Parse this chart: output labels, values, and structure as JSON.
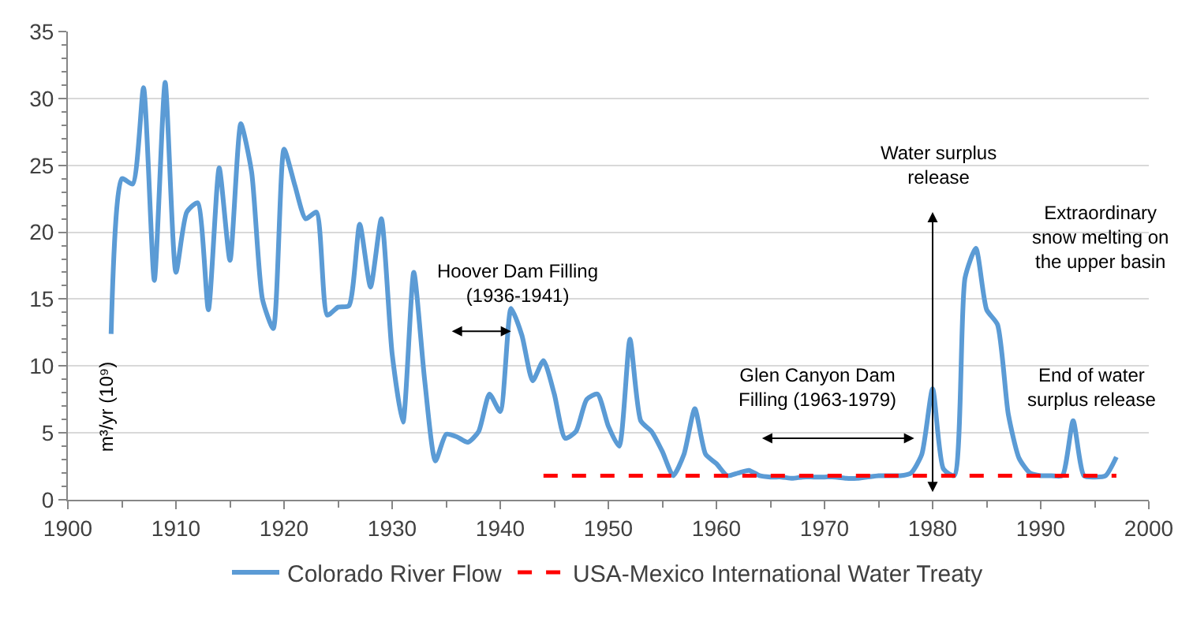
{
  "chart_data": {
    "type": "line",
    "ylabel": "m³/yr (10⁹)",
    "xlim": [
      1900,
      2000
    ],
    "xticks": [
      1900,
      1910,
      1920,
      1930,
      1940,
      1950,
      1960,
      1970,
      1980,
      1990,
      2000
    ],
    "ylim": [
      0,
      35
    ],
    "yticks": [
      0,
      5,
      10,
      15,
      20,
      25,
      30,
      35
    ],
    "grid": "y",
    "legend": "bottom",
    "marker": "none",
    "series": [
      {
        "name": "Colorado River Flow",
        "color": "#5b9bd5",
        "line_style": "solid",
        "x": [
          1904,
          1905,
          1906,
          1907,
          1908,
          1909,
          1910,
          1911,
          1912,
          1913,
          1914,
          1915,
          1916,
          1917,
          1918,
          1919,
          1920,
          1921,
          1922,
          1923,
          1924,
          1925,
          1926,
          1927,
          1928,
          1929,
          1930,
          1931,
          1932,
          1933,
          1934,
          1935,
          1936,
          1937,
          1938,
          1939,
          1940,
          1941,
          1942,
          1943,
          1944,
          1945,
          1946,
          1947,
          1948,
          1949,
          1950,
          1951,
          1952,
          1953,
          1954,
          1955,
          1956,
          1957,
          1958,
          1959,
          1960,
          1961,
          1962,
          1963,
          1964,
          1965,
          1966,
          1967,
          1968,
          1969,
          1970,
          1971,
          1972,
          1973,
          1974,
          1975,
          1976,
          1977,
          1978,
          1979,
          1980,
          1981,
          1982,
          1983,
          1984,
          1985,
          1986,
          1987,
          1988,
          1989,
          1990,
          1991,
          1992,
          1993,
          1994,
          1995,
          1996,
          1997
        ],
        "values": [
          12.4,
          24,
          23.6,
          30.8,
          16.4,
          31.2,
          17,
          21.5,
          22.2,
          14.2,
          24.8,
          17.9,
          28.1,
          24.5,
          15,
          12.8,
          26.2,
          23.5,
          21,
          21.5,
          13.8,
          14.4,
          14.5,
          20.6,
          15.9,
          21,
          10.9,
          5.8,
          17,
          9,
          2.9,
          4.9,
          4.7,
          4.3,
          5.1,
          7.9,
          6.6,
          14.3,
          12.3,
          8.9,
          10.4,
          7.9,
          4.6,
          5.1,
          7.5,
          7.9,
          5.5,
          4.0,
          12.0,
          5.9,
          5.1,
          3.6,
          1.8,
          3.4,
          6.8,
          3.4,
          2.7,
          1.8,
          2.0,
          2.2,
          1.8,
          1.7,
          1.7,
          1.6,
          1.7,
          1.7,
          1.7,
          1.7,
          1.6,
          1.6,
          1.7,
          1.8,
          1.8,
          1.8,
          2.0,
          3.4,
          8.3,
          2.3,
          1.8,
          16.6,
          18.8,
          14.2,
          13.1,
          6.4,
          3.1,
          2.0,
          1.8,
          1.8,
          1.8,
          5.9,
          1.8,
          1.7,
          1.8,
          3.2
        ]
      },
      {
        "name": "USA-Mexico International Water Treaty",
        "color": "#ff0000",
        "line_style": "dashed",
        "x": [
          1944,
          1997
        ],
        "values": [
          1.8,
          1.8
        ]
      }
    ],
    "annotations": [
      "Hoover Dam Filling\n(1936-1941)",
      "Glen Canyon Dam\nFilling (1963-1979)",
      "Water surplus\nrelease",
      "Extraordinary\nsnow melting on\nthe upper basin",
      "End of water\nsurplus release"
    ]
  }
}
